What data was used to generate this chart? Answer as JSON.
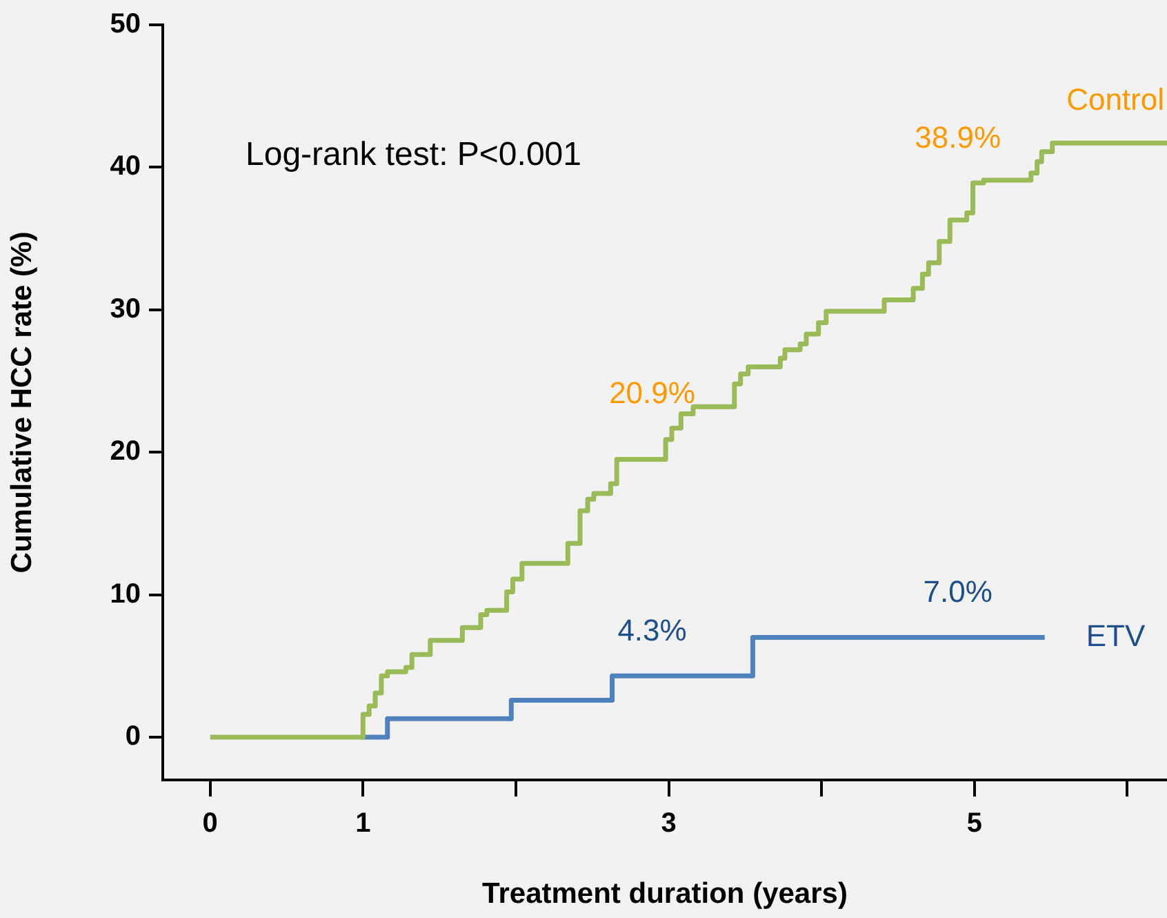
{
  "chart_data": {
    "type": "step",
    "xlabel": "Treatment duration (years)",
    "ylabel": "Cumulative HCC rate (%)",
    "xlim": [
      -0.31,
      6.26
    ],
    "xticks": [
      0,
      1,
      {
        "value": 2,
        "label": null
      },
      3,
      {
        "value": 4,
        "label": null
      },
      5,
      {
        "value": 6,
        "label": null
      }
    ],
    "ylim": [
      -3,
      50
    ],
    "yticks": [
      0,
      10,
      20,
      30,
      40,
      50
    ],
    "grid": false,
    "legend": false,
    "series": [
      {
        "name": "Control",
        "color": "#9bbb59",
        "x": [
          0,
          1.0,
          1.04,
          1.08,
          1.12,
          1.16,
          1.28,
          1.32,
          1.44,
          1.65,
          1.77,
          1.81,
          1.94,
          1.98,
          2.04,
          2.34,
          2.42,
          2.47,
          2.51,
          2.62,
          2.66,
          2.98,
          3.0,
          3.02,
          3.08,
          3.16,
          3.43,
          3.47,
          3.52,
          3.73,
          3.76,
          3.86,
          3.9,
          3.98,
          4.03,
          4.41,
          4.6,
          4.66,
          4.7,
          4.77,
          4.84,
          4.95,
          4.99,
          5.0,
          5.06,
          5.37,
          5.41,
          5.44,
          5.51,
          6.26
        ],
        "values": [
          0,
          1.6,
          2.2,
          3.1,
          4.3,
          4.6,
          4.9,
          5.8,
          6.8,
          7.7,
          8.6,
          8.9,
          10.2,
          11.1,
          12.2,
          13.6,
          15.9,
          16.7,
          17.1,
          17.8,
          19.5,
          20.9,
          20.9,
          21.7,
          22.7,
          23.2,
          24.8,
          25.5,
          26.0,
          26.6,
          27.2,
          27.6,
          28.3,
          29.1,
          29.9,
          30.7,
          31.5,
          32.5,
          33.3,
          34.8,
          36.3,
          36.8,
          38.9,
          38.9,
          39.1,
          39.6,
          40.4,
          41.1,
          41.7,
          41.7
        ],
        "value_labels": [
          null,
          null,
          null,
          null,
          null,
          null,
          null,
          null,
          null,
          null,
          null,
          null,
          null,
          null,
          null,
          null,
          null,
          null,
          null,
          null,
          null,
          null,
          "20.9%",
          null,
          null,
          null,
          null,
          null,
          null,
          null,
          null,
          null,
          null,
          null,
          null,
          null,
          null,
          null,
          null,
          null,
          null,
          null,
          null,
          "38.9%",
          null,
          null,
          null,
          null,
          null,
          null
        ]
      },
      {
        "name": "ETV",
        "color": "#4f81bd",
        "x": [
          0.98,
          1.16,
          1.97,
          2.63,
          3.0,
          3.55,
          5.0,
          5.46
        ],
        "values": [
          0,
          1.3,
          2.6,
          4.3,
          4.3,
          7.0,
          7.0,
          7.0
        ],
        "value_labels": [
          null,
          null,
          null,
          null,
          "4.3%",
          null,
          "7.0%",
          null
        ]
      }
    ],
    "annotations": [
      "Log-rank test: P<0.001"
    ]
  }
}
